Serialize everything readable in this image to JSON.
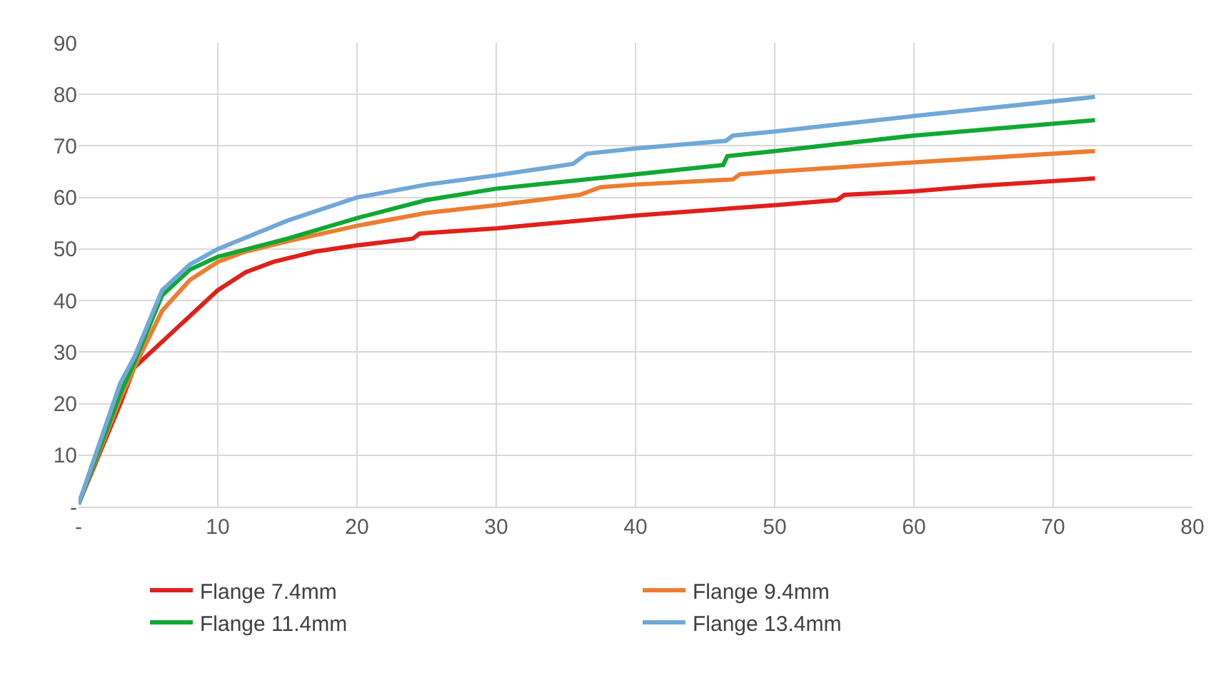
{
  "chart_data": {
    "type": "line",
    "xlim": [
      0,
      80
    ],
    "xticks": [
      {
        "value": 0,
        "label": "-"
      },
      10,
      20,
      30,
      40,
      50,
      60,
      70,
      80
    ],
    "ylim": [
      0,
      90
    ],
    "yticks": [
      {
        "value": 0,
        "label": "-"
      },
      10,
      20,
      30,
      40,
      50,
      60,
      70,
      80,
      90
    ],
    "grid": true,
    "legend": "bottom",
    "marker": "none",
    "line_style": "solid",
    "series": [
      {
        "name": "Flange 7.4mm",
        "color": "#e0201b",
        "x": [
          0,
          3,
          4,
          6,
          8,
          10,
          12,
          14,
          17,
          20,
          24,
          24.5,
          30,
          40,
          50,
          54.5,
          55,
          60,
          65,
          73
        ],
        "values": [
          0.5,
          20,
          27,
          32,
          37,
          42,
          45.5,
          47.5,
          49.5,
          50.7,
          52,
          53,
          54,
          56.5,
          58.5,
          59.5,
          60.5,
          61.2,
          62.3,
          63.7
        ]
      },
      {
        "name": "Flange 9.4mm",
        "color": "#ed7d31",
        "x": [
          0,
          3,
          4,
          6,
          8,
          10,
          12,
          15,
          20,
          25,
          30,
          36,
          37.5,
          40,
          47,
          47.5,
          50,
          60,
          73
        ],
        "values": [
          0.5,
          21,
          27,
          38,
          44,
          47.5,
          49.5,
          51.5,
          54.5,
          57,
          58.5,
          60.5,
          62,
          62.5,
          63.5,
          64.5,
          65,
          66.8,
          69
        ]
      },
      {
        "name": "Flange 11.4mm",
        "color": "#10a832",
        "x": [
          0,
          3,
          4,
          6,
          8,
          10,
          15,
          20,
          25,
          30,
          40,
          46.3,
          46.6,
          50,
          60,
          73
        ],
        "values": [
          0.5,
          22,
          28,
          41,
          46,
          48.5,
          52,
          56,
          59.5,
          61.7,
          64.5,
          66.3,
          68,
          69,
          72,
          75
        ]
      },
      {
        "name": "Flange 13.4mm",
        "color": "#70a8d8",
        "x": [
          0,
          3,
          4,
          6,
          8,
          10,
          15,
          20,
          25,
          30,
          35.5,
          36.5,
          40,
          46.5,
          47,
          50,
          60,
          73
        ],
        "values": [
          0.5,
          24,
          29,
          42,
          47,
          50,
          55.5,
          60,
          62.5,
          64.3,
          66.5,
          68.5,
          69.5,
          71,
          72,
          72.8,
          75.8,
          79.5
        ]
      }
    ]
  }
}
